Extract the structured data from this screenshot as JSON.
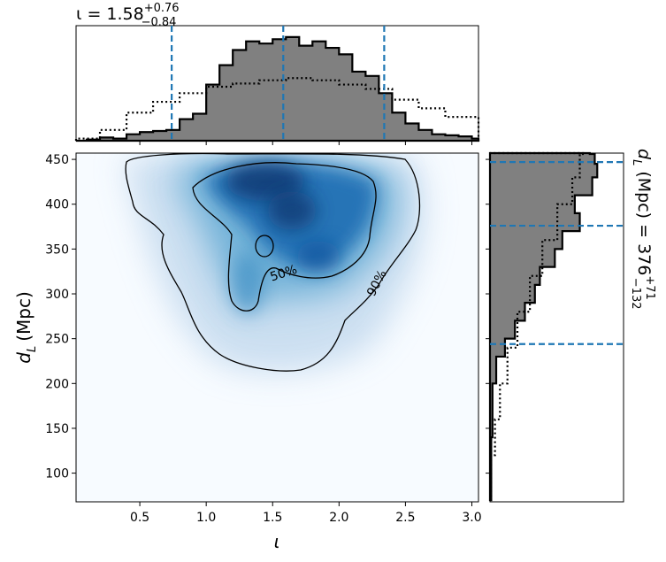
{
  "chart_data": {
    "type": "corner-plot",
    "main": {
      "type": "heatmap",
      "xlabel_base": "ι",
      "ylabel_base": "d",
      "ylabel_sub": "L",
      "ylabel_unit": "(Mpc)",
      "xlim": [
        0.02,
        3.05
      ],
      "ylim": [
        68,
        457
      ],
      "xticks": [
        0.5,
        1.0,
        1.5,
        2.0,
        2.5,
        3.0
      ],
      "xtick_labels": [
        "0.5",
        "1.0",
        "1.5",
        "2.0",
        "2.5",
        "3.0"
      ],
      "yticks": [
        100,
        150,
        200,
        250,
        300,
        350,
        400,
        450
      ],
      "ytick_labels": [
        "100",
        "150",
        "200",
        "250",
        "300",
        "350",
        "400",
        "450"
      ],
      "colormap": "Blues",
      "contours": [
        {
          "level": "90%",
          "label": "90%"
        },
        {
          "level": "50%",
          "label": "50%"
        }
      ]
    },
    "top": {
      "type": "histogram",
      "title_base": "ι = 1.58",
      "title_sup": "+0.76",
      "title_sub": "−0.84",
      "median": 1.58,
      "lower": 0.74,
      "upper": 2.34,
      "posterior": [
        {
          "x": 0.02,
          "density": 0.0
        },
        {
          "x": 0.1,
          "density": 0.01
        },
        {
          "x": 0.2,
          "density": 0.03
        },
        {
          "x": 0.3,
          "density": 0.02
        },
        {
          "x": 0.4,
          "density": 0.06
        },
        {
          "x": 0.5,
          "density": 0.08
        },
        {
          "x": 0.6,
          "density": 0.09
        },
        {
          "x": 0.7,
          "density": 0.1
        },
        {
          "x": 0.8,
          "density": 0.2
        },
        {
          "x": 0.9,
          "density": 0.25
        },
        {
          "x": 1.0,
          "density": 0.52
        },
        {
          "x": 1.1,
          "density": 0.7
        },
        {
          "x": 1.2,
          "density": 0.84
        },
        {
          "x": 1.3,
          "density": 0.92
        },
        {
          "x": 1.4,
          "density": 0.9
        },
        {
          "x": 1.5,
          "density": 0.94
        },
        {
          "x": 1.6,
          "density": 0.96
        },
        {
          "x": 1.7,
          "density": 0.88
        },
        {
          "x": 1.8,
          "density": 0.92
        },
        {
          "x": 1.9,
          "density": 0.86
        },
        {
          "x": 2.0,
          "density": 0.8
        },
        {
          "x": 2.1,
          "density": 0.64
        },
        {
          "x": 2.2,
          "density": 0.6
        },
        {
          "x": 2.3,
          "density": 0.44
        },
        {
          "x": 2.4,
          "density": 0.26
        },
        {
          "x": 2.5,
          "density": 0.16
        },
        {
          "x": 2.6,
          "density": 0.1
        },
        {
          "x": 2.7,
          "density": 0.06
        },
        {
          "x": 2.8,
          "density": 0.05
        },
        {
          "x": 2.9,
          "density": 0.04
        },
        {
          "x": 3.0,
          "density": 0.02
        }
      ],
      "prior": [
        {
          "x": 0.02,
          "density": 0.02
        },
        {
          "x": 0.2,
          "density": 0.1
        },
        {
          "x": 0.4,
          "density": 0.26
        },
        {
          "x": 0.6,
          "density": 0.36
        },
        {
          "x": 0.8,
          "density": 0.44
        },
        {
          "x": 1.0,
          "density": 0.5
        },
        {
          "x": 1.2,
          "density": 0.53
        },
        {
          "x": 1.4,
          "density": 0.56
        },
        {
          "x": 1.6,
          "density": 0.58
        },
        {
          "x": 1.8,
          "density": 0.56
        },
        {
          "x": 2.0,
          "density": 0.52
        },
        {
          "x": 2.2,
          "density": 0.48
        },
        {
          "x": 2.4,
          "density": 0.38
        },
        {
          "x": 2.6,
          "density": 0.3
        },
        {
          "x": 2.8,
          "density": 0.22
        },
        {
          "x": 3.05,
          "density": 0.04
        }
      ]
    },
    "right": {
      "type": "histogram",
      "orientation": "horizontal",
      "label_base": "d",
      "label_sub": "L",
      "label_mid": " (Mpc) = 376",
      "label_sup": "+71",
      "label_low": "−132",
      "median": 376,
      "lower": 244,
      "upper": 447,
      "posterior": [
        {
          "y": 70,
          "density": 0.01
        },
        {
          "y": 100,
          "density": 0.01
        },
        {
          "y": 140,
          "density": 0.02
        },
        {
          "y": 170,
          "density": 0.02
        },
        {
          "y": 200,
          "density": 0.05
        },
        {
          "y": 230,
          "density": 0.12
        },
        {
          "y": 250,
          "density": 0.2
        },
        {
          "y": 270,
          "density": 0.28
        },
        {
          "y": 290,
          "density": 0.36
        },
        {
          "y": 310,
          "density": 0.4
        },
        {
          "y": 330,
          "density": 0.52
        },
        {
          "y": 350,
          "density": 0.58
        },
        {
          "y": 370,
          "density": 0.72
        },
        {
          "y": 390,
          "density": 0.68
        },
        {
          "y": 410,
          "density": 0.82
        },
        {
          "y": 430,
          "density": 0.86
        },
        {
          "y": 445,
          "density": 0.84
        },
        {
          "y": 456,
          "density": 0.8
        }
      ],
      "prior": [
        {
          "y": 70,
          "density": 0.01
        },
        {
          "y": 120,
          "density": 0.04
        },
        {
          "y": 160,
          "density": 0.08
        },
        {
          "y": 200,
          "density": 0.14
        },
        {
          "y": 240,
          "density": 0.22
        },
        {
          "y": 280,
          "density": 0.32
        },
        {
          "y": 320,
          "density": 0.42
        },
        {
          "y": 360,
          "density": 0.54
        },
        {
          "y": 400,
          "density": 0.66
        },
        {
          "y": 430,
          "density": 0.72
        },
        {
          "y": 456,
          "density": 0.76
        }
      ]
    }
  },
  "colors": {
    "hist_fill": "#808080",
    "credible_line": "#1f77b4",
    "heat_dark": "#08306b",
    "heat_mid": "#4292c6",
    "heat_light": "#deebf7"
  }
}
